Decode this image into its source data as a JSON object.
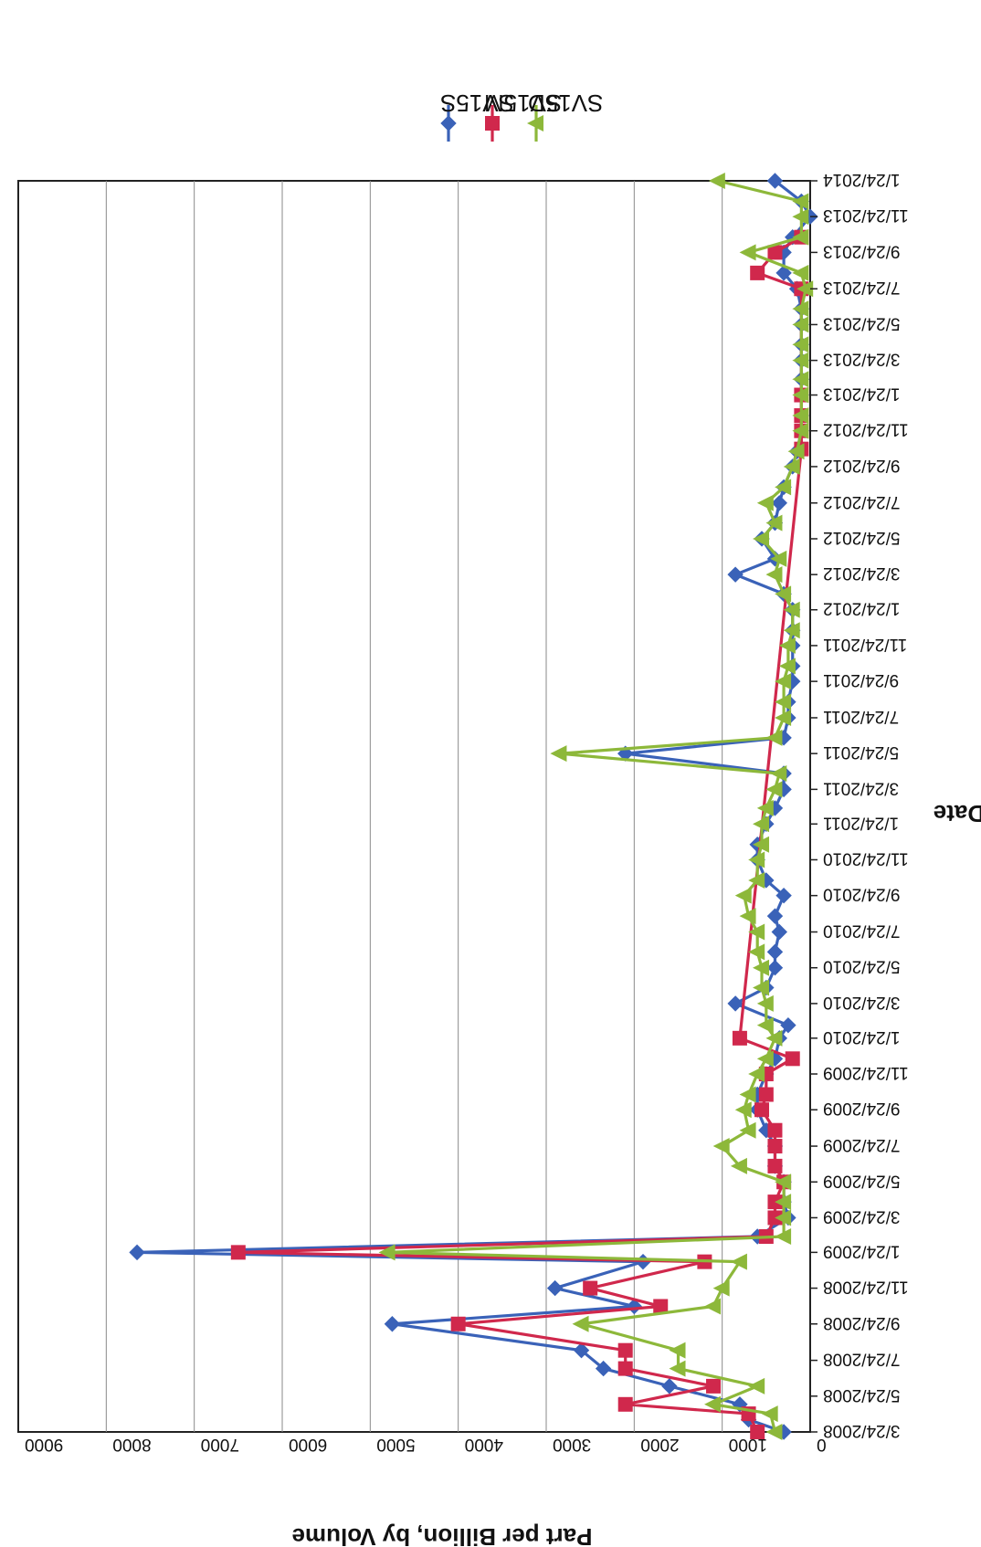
{
  "chart_data": {
    "type": "line",
    "orientation": "rotated-90",
    "title": "",
    "xlabel": "Date",
    "ylabel": "Part per Billion, by Volume",
    "ylim": [
      0,
      9000
    ],
    "yticks": [
      "0",
      "1000",
      "2000",
      "3000",
      "4000",
      "5000",
      "6000",
      "7000",
      "8000",
      "9000"
    ],
    "xlim": [
      "3/24/2008",
      "1/24/2014"
    ],
    "xticks": [
      "3/24/2008",
      "5/24/2008",
      "7/24/2008",
      "9/24/2008",
      "11/24/2008",
      "1/24/2009",
      "3/24/2009",
      "5/24/2009",
      "7/24/2009",
      "9/24/2009",
      "11/24/2009",
      "1/24/2010",
      "3/24/2010",
      "5/24/2010",
      "7/24/2010",
      "9/24/2010",
      "11/24/2010",
      "1/24/2011",
      "3/24/2011",
      "5/24/2011",
      "7/24/2011",
      "9/24/2011",
      "11/24/2011",
      "1/24/2012",
      "3/24/2012",
      "5/24/2012",
      "7/24/2012",
      "9/24/2012",
      "11/24/2012",
      "1/24/2013",
      "3/24/2013",
      "5/24/2013",
      "7/24/2013",
      "9/24/2013",
      "11/24/2013",
      "1/24/2014"
    ],
    "grid": true,
    "legend": "top-right",
    "series": [
      {
        "name": "SV15S",
        "color": "#3a62b8",
        "marker": "diamond",
        "x": [
          "3/24/2008",
          "4/14/2008",
          "5/10/2008",
          "6/10/2008",
          "7/10/2008",
          "8/10/2008",
          "9/24/2008",
          "10/24/2008",
          "11/24/2008",
          "1/8/2009",
          "1/24/2009",
          "2/20/2009",
          "3/24/2009",
          "4/20/2009",
          "5/24/2009",
          "6/20/2009",
          "7/24/2009",
          "8/20/2009",
          "9/24/2009",
          "10/20/2009",
          "11/24/2009",
          "12/20/2009",
          "1/24/2010",
          "2/15/2010",
          "3/24/2010",
          "4/20/2010",
          "5/24/2010",
          "6/20/2010",
          "7/24/2010",
          "8/20/2010",
          "9/24/2010",
          "10/20/2010",
          "11/24/2010",
          "12/20/2010",
          "1/24/2011",
          "2/20/2011",
          "3/24/2011",
          "4/20/2011",
          "5/24/2011",
          "6/20/2011",
          "7/24/2011",
          "8/20/2011",
          "9/24/2011",
          "10/20/2011",
          "11/24/2011",
          "12/20/2011",
          "1/24/2012",
          "2/20/2012",
          "3/24/2012",
          "4/20/2012",
          "5/24/2012",
          "6/20/2012",
          "7/24/2012",
          "8/20/2012",
          "9/24/2012",
          "10/20/2012",
          "11/24/2012",
          "12/20/2012",
          "1/24/2013",
          "2/20/2013",
          "3/24/2013",
          "4/20/2013",
          "5/24/2013",
          "6/20/2013",
          "7/24/2013",
          "8/20/2013",
          "9/24/2013",
          "10/20/2013",
          "11/24/2013",
          "12/20/2013",
          "1/24/2014"
        ],
        "values": [
          300,
          700,
          800,
          1600,
          2350,
          2600,
          4750,
          2000,
          2900,
          1900,
          7650,
          600,
          250,
          300,
          300,
          400,
          400,
          500,
          600,
          600,
          500,
          400,
          350,
          250,
          850,
          500,
          400,
          400,
          350,
          400,
          300,
          500,
          600,
          600,
          500,
          400,
          300,
          300,
          2100,
          300,
          250,
          250,
          200,
          200,
          200,
          200,
          200,
          300,
          850,
          400,
          550,
          400,
          350,
          300,
          200,
          150,
          100,
          100,
          100,
          100,
          100,
          100,
          100,
          100,
          150,
          300,
          300,
          200,
          0,
          100,
          400
        ]
      },
      {
        "name": "SV15M",
        "color": "#d0284c",
        "marker": "square",
        "x": [
          "3/24/2008",
          "4/24/2008",
          "5/10/2008",
          "6/10/2008",
          "7/10/2008",
          "8/10/2008",
          "9/24/2008",
          "10/24/2008",
          "11/24/2008",
          "1/8/2009",
          "1/24/2009",
          "2/20/2009",
          "3/24/2009",
          "4/20/2009",
          "5/24/2009",
          "6/20/2009",
          "7/24/2009",
          "8/20/2009",
          "9/24/2009",
          "10/20/2009",
          "11/24/2009",
          "12/20/2009",
          "1/24/2010",
          "10/24/2012",
          "11/24/2012",
          "12/20/2012",
          "1/24/2013",
          "7/24/2013",
          "8/20/2013",
          "9/24/2013",
          "10/20/2013"
        ],
        "values": [
          600,
          700,
          2100,
          1100,
          2100,
          2100,
          4000,
          1700,
          2500,
          1200,
          6500,
          500,
          400,
          400,
          300,
          400,
          400,
          400,
          550,
          500,
          500,
          200,
          800,
          100,
          100,
          100,
          100,
          100,
          600,
          400,
          100
        ]
      },
      {
        "name": "SV15D",
        "color": "#8db83a",
        "marker": "triangle",
        "x": [
          "3/24/2008",
          "4/24/2008",
          "5/10/2008",
          "6/10/2008",
          "7/10/2008",
          "8/10/2008",
          "9/24/2008",
          "10/24/2008",
          "11/24/2008",
          "1/8/2009",
          "1/24/2009",
          "2/20/2009",
          "3/24/2009",
          "4/20/2009",
          "5/24/2009",
          "6/20/2009",
          "7/24/2009",
          "8/20/2009",
          "9/24/2009",
          "10/20/2009",
          "11/24/2009",
          "12/20/2009",
          "1/24/2010",
          "2/15/2010",
          "3/24/2010",
          "4/20/2010",
          "5/24/2010",
          "6/20/2010",
          "7/24/2010",
          "8/20/2010",
          "9/24/2010",
          "10/20/2010",
          "11/24/2010",
          "12/20/2010",
          "1/24/2011",
          "2/20/2011",
          "3/24/2011",
          "4/20/2011",
          "5/24/2011",
          "6/20/2011",
          "7/24/2011",
          "8/20/2011",
          "9/24/2011",
          "10/20/2011",
          "11/24/2011",
          "12/20/2011",
          "1/24/2012",
          "2/20/2012",
          "3/24/2012",
          "4/20/2012",
          "5/24/2012",
          "6/20/2012",
          "7/24/2012",
          "8/20/2012",
          "9/24/2012",
          "10/20/2012",
          "11/24/2012",
          "12/20/2012",
          "1/24/2013",
          "2/20/2013",
          "3/24/2013",
          "4/20/2013",
          "5/24/2013",
          "6/20/2013",
          "7/24/2013",
          "8/20/2013",
          "9/24/2013",
          "10/20/2013",
          "11/24/2013",
          "12/20/2013",
          "1/24/2014"
        ],
        "values": [
          400,
          450,
          1100,
          600,
          1500,
          1500,
          2600,
          1100,
          1000,
          800,
          4800,
          300,
          300,
          300,
          300,
          800,
          1000,
          700,
          750,
          700,
          600,
          500,
          400,
          500,
          500,
          550,
          550,
          600,
          600,
          700,
          750,
          600,
          600,
          550,
          550,
          500,
          400,
          350,
          2850,
          400,
          300,
          300,
          300,
          250,
          250,
          200,
          200,
          300,
          400,
          350,
          550,
          400,
          500,
          300,
          200,
          150,
          100,
          100,
          100,
          100,
          100,
          100,
          100,
          100,
          50,
          100,
          700,
          100,
          100,
          100,
          1050
        ]
      }
    ]
  }
}
